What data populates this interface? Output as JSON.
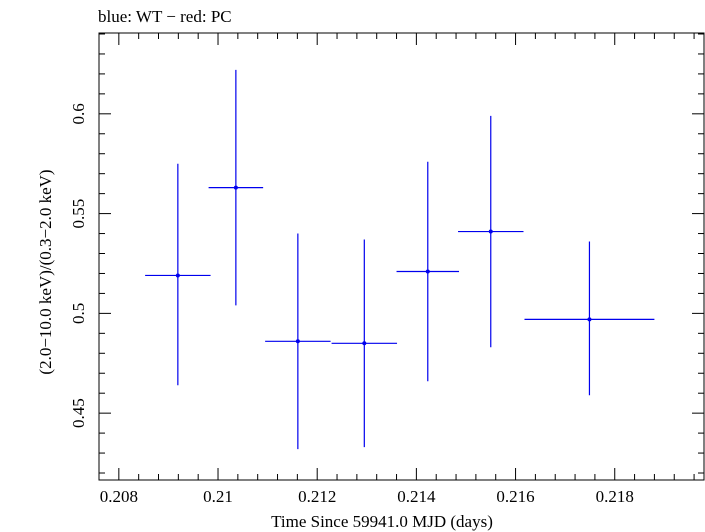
{
  "chart_data": {
    "type": "scatter",
    "title": "blue: WT − red: PC",
    "xlabel": "Time Since 59941.0 MJD (days)",
    "ylabel": "(2.0−10.0 keV)/(0.3−2.0 keV)",
    "xlim": [
      0.2076,
      0.2198
    ],
    "ylim": [
      0.4165,
      0.6405
    ],
    "xticks": [
      0.208,
      0.21,
      0.212,
      0.214,
      0.216,
      0.218
    ],
    "xtick_labels": [
      "0.208",
      "0.21",
      "0.212",
      "0.214",
      "0.216",
      "0.218"
    ],
    "yticks": [
      0.45,
      0.5,
      0.55,
      0.6
    ],
    "ytick_labels": [
      "0.45",
      "0.5",
      "0.55",
      "0.6"
    ],
    "grid": false,
    "series": [
      {
        "color": "#0000ee",
        "points": [
          {
            "x": 0.20919,
            "xerr": 0.00066,
            "y": 0.519,
            "ylo": 0.464,
            "yhi": 0.575
          },
          {
            "x": 0.21036,
            "xerr": 0.00055,
            "y": 0.563,
            "ylo": 0.504,
            "yhi": 0.622
          },
          {
            "x": 0.21161,
            "xerr": 0.00066,
            "y": 0.486,
            "ylo": 0.432,
            "yhi": 0.54
          },
          {
            "x": 0.21295,
            "xerr": 0.00066,
            "y": 0.485,
            "ylo": 0.433,
            "yhi": 0.537
          },
          {
            "x": 0.21423,
            "xerr": 0.00063,
            "y": 0.521,
            "ylo": 0.466,
            "yhi": 0.576
          },
          {
            "x": 0.2155,
            "xerr": 0.00066,
            "y": 0.541,
            "ylo": 0.483,
            "yhi": 0.599
          },
          {
            "x": 0.21749,
            "xerr": 0.00131,
            "y": 0.497,
            "ylo": 0.459,
            "yhi": 0.536
          }
        ]
      }
    ]
  }
}
